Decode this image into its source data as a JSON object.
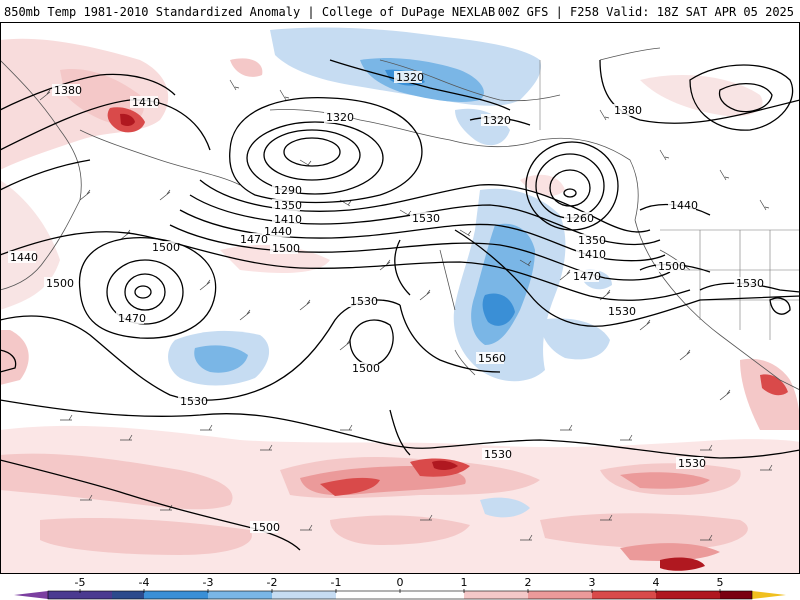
{
  "header": {
    "title_left": "850mb Temp 1981-2010 Standardized Anomaly | College of DuPage NEXLAB",
    "title_right": "00Z GFS | F258 Valid: 18Z SAT APR 05 2025"
  },
  "colors": {
    "neg5": "#7b3fa0",
    "neg4": "#2b4a8c",
    "neg3": "#3a8fd6",
    "neg2": "#7ab6e6",
    "neg1": "#c6dcf2",
    "zero": "#ffffff",
    "pos1": "#f4c8c8",
    "pos2": "#eb9a9a",
    "pos3": "#d94a4a",
    "pos4": "#b01820",
    "pos5": "#7a0010",
    "pos6": "#f0c020"
  },
  "colorbar": {
    "ticks": [
      "-5",
      "-4",
      "-3",
      "-2",
      "-1",
      "0",
      "1",
      "2",
      "3",
      "4",
      "5"
    ]
  },
  "contours": {
    "l1380a": "1380",
    "l1410a": "1410",
    "l1320a": "1320",
    "l1320b": "1320",
    "l1320c": "1320",
    "l1380b": "1380",
    "l1290": "1290",
    "l1350a": "1350",
    "l1410b": "1410",
    "l1440a": "1440",
    "l1470a": "1470",
    "l1500a": "1500",
    "l1530a": "1530",
    "l1260": "1260",
    "l1350b": "1350",
    "l1410c": "1410",
    "l1470b": "1470",
    "l1500b": "1500",
    "l1440b": "1440",
    "l1530b": "1530",
    "l1440c": "1440",
    "l1500c": "1500",
    "l1500d": "1500",
    "l1470c": "1470",
    "l1530c": "1530",
    "l1500e": "1500",
    "l1560": "1560",
    "l1530d": "1530",
    "l1530e": "1530",
    "l1530f": "1530",
    "l1530g": "1530",
    "l1500f": "1500"
  }
}
